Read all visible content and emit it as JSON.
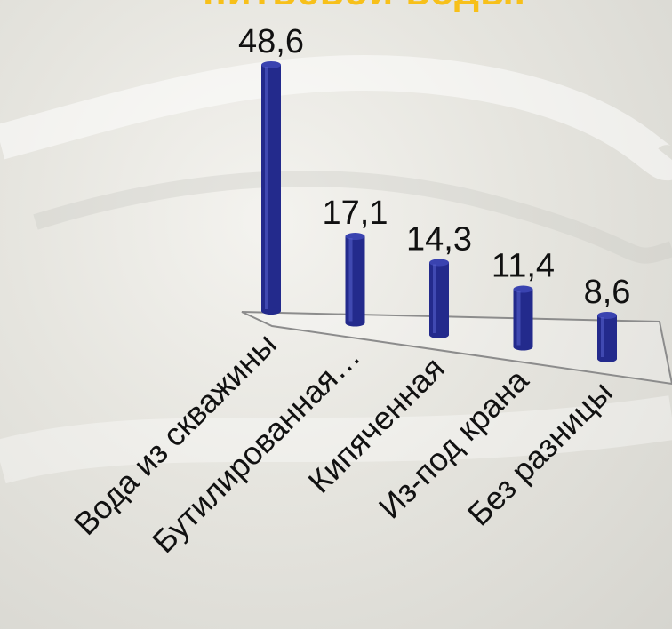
{
  "title_fragment": "питьевой воды.",
  "chart_data": {
    "type": "bar",
    "categories": [
      "Вода из скважины",
      "Бутилированная…",
      "Кипяченная",
      "Из-под крана",
      "Без разницы"
    ],
    "values": [
      48.6,
      17.1,
      14.3,
      11.4,
      8.6
    ],
    "value_labels": [
      "48,6",
      "17,1",
      "14,3",
      "11,4",
      "8,6"
    ],
    "ylim": [
      0,
      50
    ],
    "bar_color": "#232a8c",
    "grid": false,
    "legend": false
  }
}
